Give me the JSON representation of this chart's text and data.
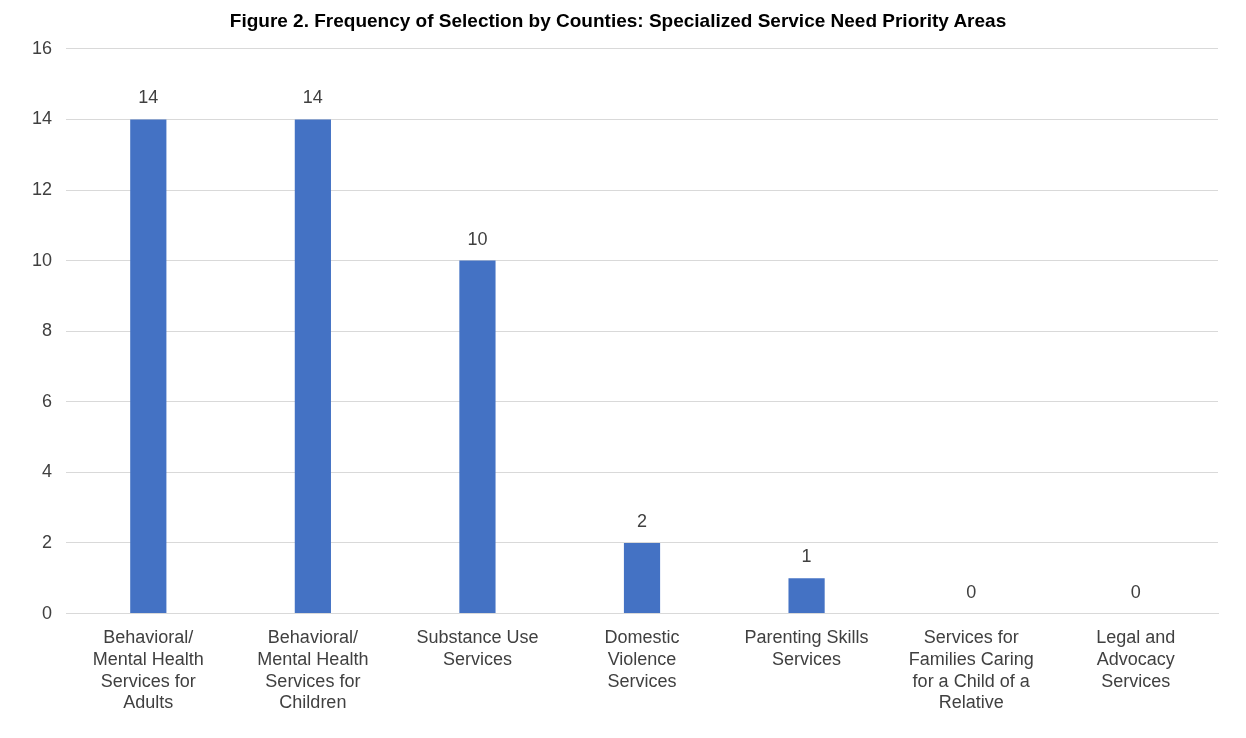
{
  "chart_data": {
    "type": "bar",
    "title": "Figure 2. Frequency of Selection by Counties: Specialized Service Need Priority Areas",
    "categories": [
      "Behavioral/ Mental Health Services for Adults",
      "Behavioral/ Mental Health Services for Children",
      "Substance Use Services",
      "Domestic Violence Services",
      "Parenting Skills Services",
      "Services for Families Caring for a Child of a Relative",
      "Legal and Advocacy Services"
    ],
    "values": [
      14,
      14,
      10,
      2,
      1,
      0,
      0
    ],
    "color": "#4472c4",
    "ylim": [
      0,
      16
    ],
    "yticks": [
      0,
      2,
      4,
      6,
      8,
      10,
      12,
      14,
      16
    ],
    "grid": "y",
    "data_labels": true,
    "legend": false
  }
}
